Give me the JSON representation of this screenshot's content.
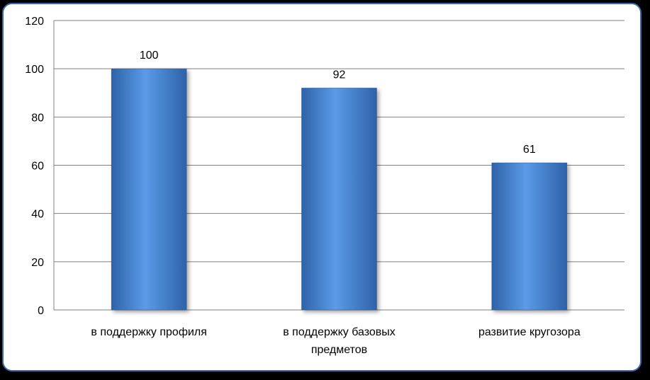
{
  "chart_data": {
    "type": "bar",
    "categories": [
      [
        "в поддержку профиля"
      ],
      [
        "в поддержку базовых",
        "предметов"
      ],
      [
        "развитие кругозора"
      ]
    ],
    "values": [
      100,
      92,
      61
    ],
    "data_labels": [
      "100",
      "92",
      "61"
    ],
    "title": "",
    "xlabel": "",
    "ylabel": "",
    "ylim": [
      0,
      120
    ],
    "yticks": [
      0,
      20,
      40,
      60,
      80,
      100,
      120
    ],
    "grid": true,
    "legend": "none",
    "colors": {
      "bar_top": "#5b9be8",
      "bar_mid": "#3f7fd1",
      "bar_bottom": "#2e62a8",
      "bar_edge": "#2a5a9c",
      "grid": "#808080",
      "frame_border": "#3b6aa8",
      "background": "#000000"
    }
  }
}
